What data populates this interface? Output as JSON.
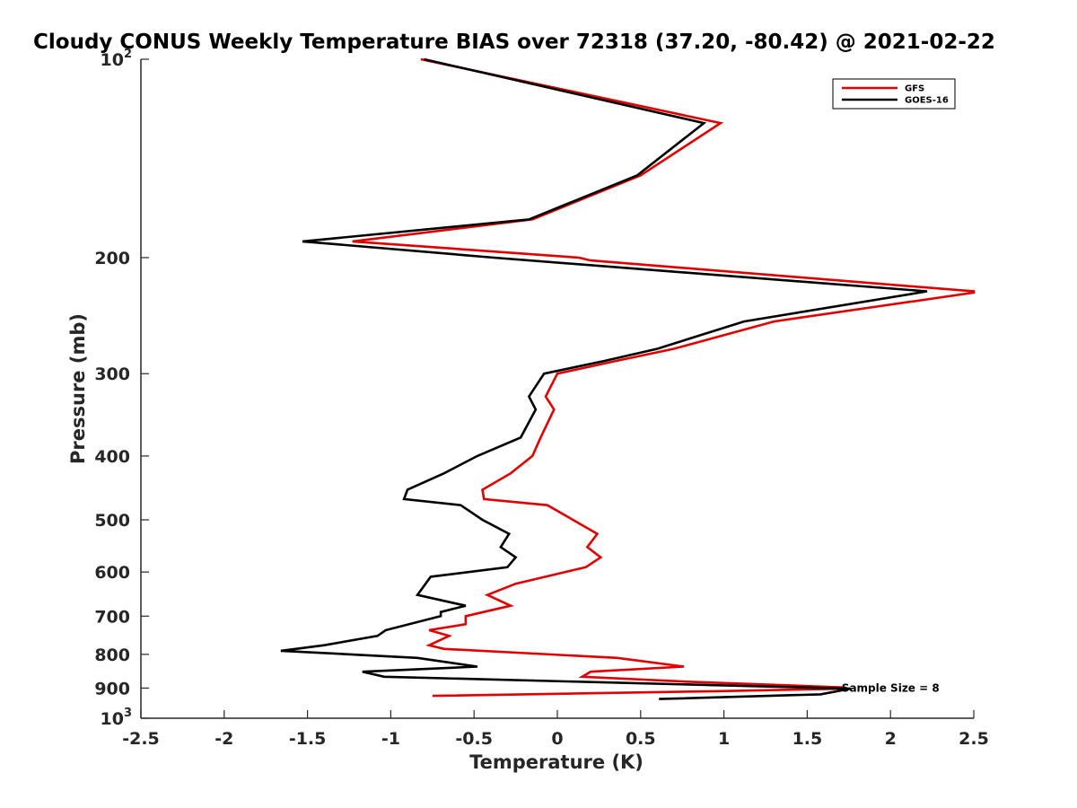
{
  "chart_data": {
    "type": "line",
    "title": "Cloudy CONUS Weekly Temperature BIAS over 72318 (37.20, -80.42) @ 2021-02-22",
    "xlabel": "Temperature (K)",
    "ylabel": "Pressure (mb)",
    "xlim": [
      -2.5,
      2.5
    ],
    "ylim": [
      100,
      1000
    ],
    "yscale": "log",
    "y_reversed": true,
    "xticks": [
      "-2.5",
      "-2",
      "-1.5",
      "-1",
      "-0.5",
      "0",
      "0.5",
      "1",
      "1.5",
      "2",
      "2.5"
    ],
    "xtick_values": [
      -2.5,
      -2,
      -1.5,
      -1,
      -0.5,
      0,
      0.5,
      1,
      1.5,
      2,
      2.5
    ],
    "yticks": [
      {
        "value": 100,
        "base": "10",
        "exp": "2"
      },
      {
        "value": 200,
        "label": "200"
      },
      {
        "value": 300,
        "label": "300"
      },
      {
        "value": 400,
        "label": "400"
      },
      {
        "value": 500,
        "label": "500"
      },
      {
        "value": 600,
        "label": "600"
      },
      {
        "value": 700,
        "label": "700"
      },
      {
        "value": 800,
        "label": "800"
      },
      {
        "value": 900,
        "label": "900"
      },
      {
        "value": 1000,
        "base": "10",
        "exp": "3"
      }
    ],
    "legend_location": "top-right",
    "annotation": "Sample Size = 8",
    "annotation_at": {
      "x": 1.75,
      "p": 900
    },
    "series": [
      {
        "name": "GFS",
        "color": "#e00000",
        "points": [
          [
            -0.82,
            100
          ],
          [
            0.98,
            125
          ],
          [
            0.5,
            150
          ],
          [
            -0.15,
            175
          ],
          [
            -1.23,
            189
          ],
          [
            0.13,
            200
          ],
          [
            0.2,
            202
          ],
          [
            2.5,
            225
          ],
          [
            2.5,
            226
          ],
          [
            1.3,
            250
          ],
          [
            0.7,
            275
          ],
          [
            0.35,
            287
          ],
          [
            0.0,
            300
          ],
          [
            -0.07,
            325
          ],
          [
            -0.02,
            340
          ],
          [
            -0.1,
            375
          ],
          [
            -0.15,
            400
          ],
          [
            -0.28,
            425
          ],
          [
            -0.45,
            450
          ],
          [
            -0.44,
            465
          ],
          [
            -0.06,
            475
          ],
          [
            0.24,
            525
          ],
          [
            0.18,
            550
          ],
          [
            0.26,
            570
          ],
          [
            0.17,
            590
          ],
          [
            -0.25,
            625
          ],
          [
            -0.42,
            650
          ],
          [
            -0.28,
            675
          ],
          [
            -0.55,
            700
          ],
          [
            -0.55,
            720
          ],
          [
            -0.77,
            735
          ],
          [
            -0.65,
            750
          ],
          [
            -0.77,
            775
          ],
          [
            -0.68,
            785
          ],
          [
            0.36,
            810
          ],
          [
            0.76,
            835
          ],
          [
            0.2,
            850
          ],
          [
            0.15,
            865
          ],
          [
            0.78,
            880
          ],
          [
            1.72,
            898
          ],
          [
            1.72,
            902
          ],
          [
            0.95,
            910
          ],
          [
            -0.75,
            925
          ]
        ]
      },
      {
        "name": "GOES-16",
        "color": "#000000",
        "points": [
          [
            -0.8,
            100
          ],
          [
            0.88,
            125
          ],
          [
            0.48,
            150
          ],
          [
            -0.17,
            175
          ],
          [
            -1.53,
            189
          ],
          [
            -0.38,
            200
          ],
          [
            2.22,
            225
          ],
          [
            1.12,
            250
          ],
          [
            0.6,
            275
          ],
          [
            0.28,
            287
          ],
          [
            -0.08,
            300
          ],
          [
            -0.17,
            325
          ],
          [
            -0.13,
            340
          ],
          [
            -0.22,
            375
          ],
          [
            -0.48,
            400
          ],
          [
            -0.68,
            425
          ],
          [
            -0.9,
            450
          ],
          [
            -0.92,
            465
          ],
          [
            -0.58,
            475
          ],
          [
            -0.45,
            500
          ],
          [
            -0.29,
            525
          ],
          [
            -0.34,
            550
          ],
          [
            -0.25,
            570
          ],
          [
            -0.3,
            590
          ],
          [
            -0.76,
            610
          ],
          [
            -0.84,
            650
          ],
          [
            -0.55,
            675
          ],
          [
            -0.7,
            690
          ],
          [
            -0.7,
            700
          ],
          [
            -1.03,
            735
          ],
          [
            -1.08,
            750
          ],
          [
            -1.4,
            775
          ],
          [
            -1.66,
            790
          ],
          [
            -0.84,
            810
          ],
          [
            -0.48,
            835
          ],
          [
            -1.17,
            850
          ],
          [
            -1.04,
            865
          ],
          [
            1.76,
            902
          ],
          [
            1.58,
            920
          ],
          [
            0.61,
            935
          ]
        ]
      }
    ]
  }
}
